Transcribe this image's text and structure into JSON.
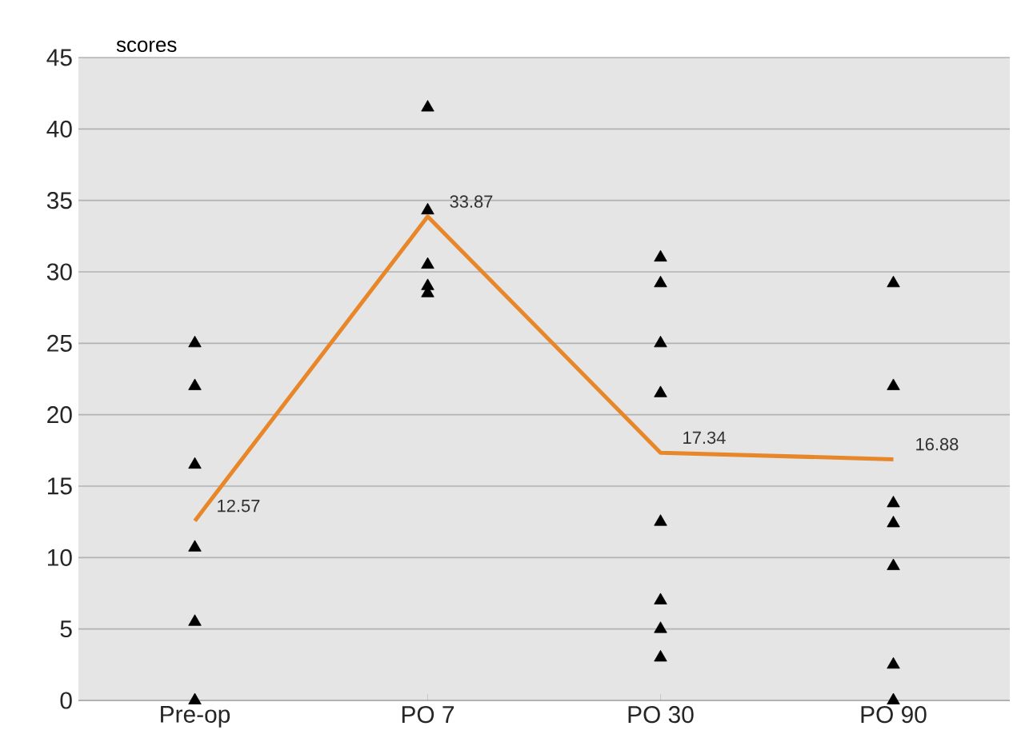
{
  "chart_data": {
    "type": "line",
    "ylabel": "scores",
    "categories": [
      "Pre-op",
      "PO 7",
      "PO 30",
      "PO 90"
    ],
    "ylim": [
      0,
      45
    ],
    "yticks": [
      0,
      5,
      10,
      15,
      20,
      25,
      30,
      35,
      40,
      45
    ],
    "grid": "y",
    "series": [
      {
        "type": "scatter",
        "marker": "triangle",
        "color": "#000000",
        "x": [
          "Pre-op",
          "Pre-op",
          "Pre-op",
          "Pre-op",
          "Pre-op",
          "Pre-op",
          "PO 7",
          "PO 7",
          "PO 7",
          "PO 7",
          "PO 7",
          "PO 30",
          "PO 30",
          "PO 30",
          "PO 30",
          "PO 30",
          "PO 30",
          "PO 30",
          "PO 30",
          "PO 90",
          "PO 90",
          "PO 90",
          "PO 90",
          "PO 90",
          "PO 90",
          "PO 90"
        ],
        "values": [
          25,
          22,
          16.5,
          10.7,
          5.5,
          0,
          41.5,
          34.3,
          30.5,
          29,
          28.5,
          31,
          29.2,
          25,
          21.5,
          12.5,
          7,
          5,
          3,
          29.2,
          22,
          13.8,
          12.4,
          9.4,
          2.5,
          0
        ]
      },
      {
        "line_style": "solid",
        "color": "#e8862a",
        "values": [
          12.57,
          33.87,
          17.34,
          16.88
        ],
        "value_labels": [
          "12.57",
          "33.87",
          "17.34",
          "16.88"
        ]
      }
    ]
  }
}
